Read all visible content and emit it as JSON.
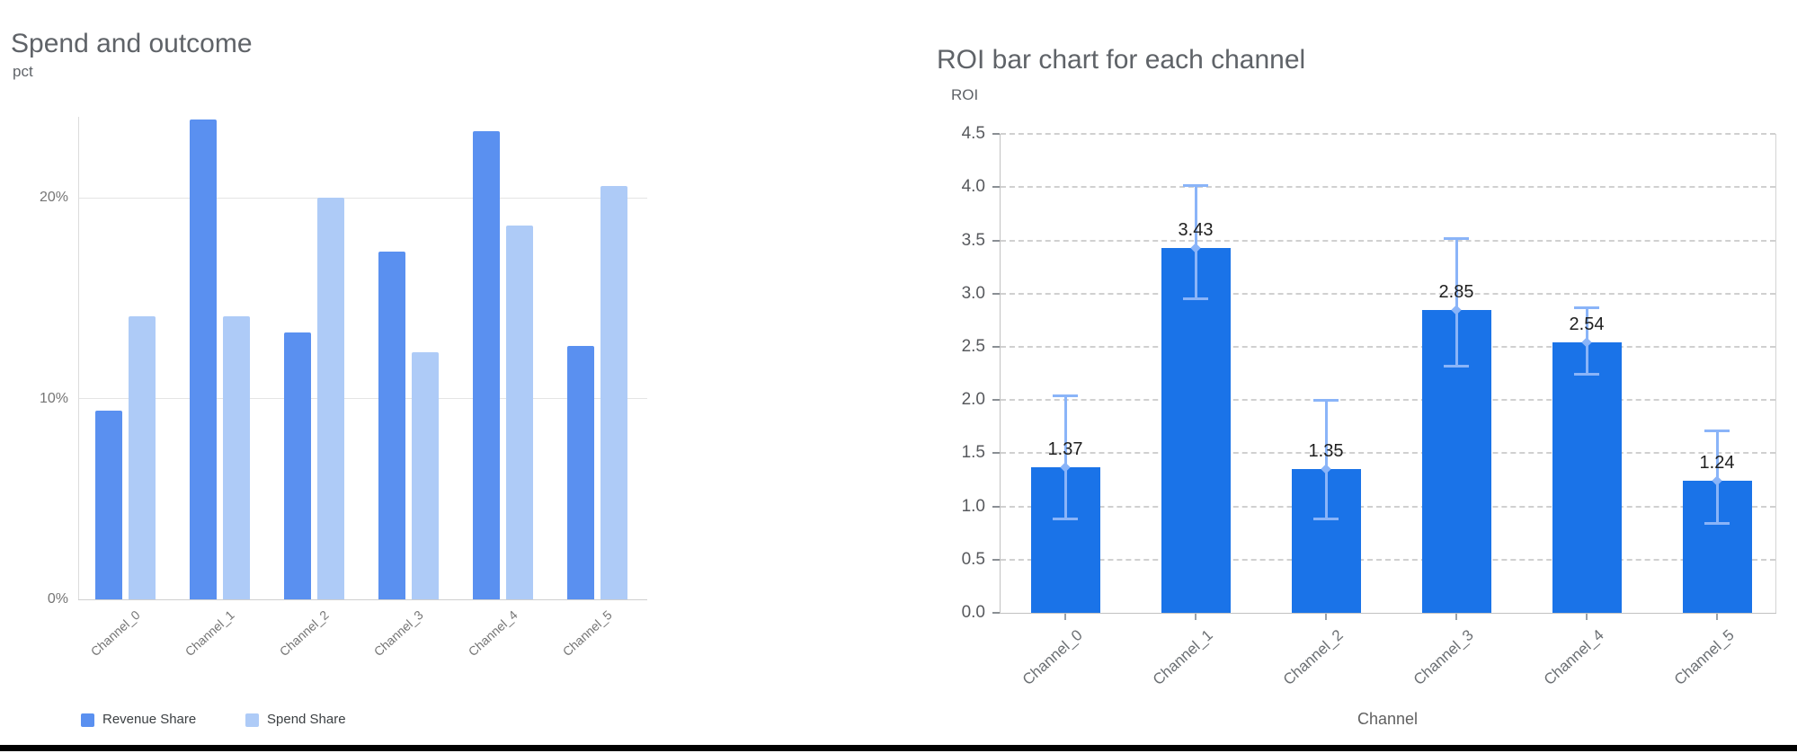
{
  "chart_data": [
    {
      "type": "bar",
      "title": "Spend and outcome",
      "ylabel": "pct",
      "xlabel": "",
      "categories": [
        "Channel_0",
        "Channel_1",
        "Channel_2",
        "Channel_3",
        "Channel_4",
        "Channel_5"
      ],
      "series": [
        {
          "name": "Revenue Share",
          "color": "#5a90f0",
          "values": [
            9.4,
            23.9,
            13.3,
            17.3,
            23.3,
            12.6
          ]
        },
        {
          "name": "Spend Share",
          "color": "#aecbf7",
          "values": [
            14.1,
            14.1,
            20.0,
            12.3,
            18.6,
            20.6
          ]
        }
      ],
      "y_ticks": [
        {
          "value": 0,
          "label": "0%"
        },
        {
          "value": 10,
          "label": "10%"
        },
        {
          "value": 20,
          "label": "20%"
        }
      ],
      "ylim": [
        0,
        24
      ],
      "grid": true,
      "legend_position": "bottom-left"
    },
    {
      "type": "bar",
      "title": "ROI bar chart for each channel",
      "ylabel": "ROI",
      "xlabel": "Channel",
      "categories": [
        "Channel_0",
        "Channel_1",
        "Channel_2",
        "Channel_3",
        "Channel_4",
        "Channel_5"
      ],
      "values": [
        1.37,
        3.43,
        1.35,
        2.85,
        2.54,
        1.24
      ],
      "value_labels": [
        "1.37",
        "3.43",
        "1.35",
        "2.85",
        "2.54",
        "1.24"
      ],
      "error_low": [
        0.88,
        2.95,
        0.88,
        2.32,
        2.24,
        0.84
      ],
      "error_high": [
        2.04,
        4.02,
        2.0,
        3.52,
        2.87,
        1.71
      ],
      "bar_color": "#1a73e8",
      "error_bar_color": "#8ab4f8",
      "y_ticks": [
        0.0,
        0.5,
        1.0,
        1.5,
        2.0,
        2.5,
        3.0,
        3.5,
        4.0,
        4.5
      ],
      "ylim": [
        0,
        4.5
      ],
      "grid": "dashed",
      "legend_position": "none"
    }
  ],
  "page": {
    "background": "#ffffff",
    "bottom_border_color": "#000000"
  },
  "colors": {
    "title_text": "#5f6368",
    "tick_text": "#757575",
    "right_tick_text": "#57595d",
    "value_label_text": "#1f1f1f",
    "gridline_left": "#e4e4e4",
    "gridline_right_dashed": "#d0d0d0",
    "axis_line": "#c2c2c2"
  }
}
